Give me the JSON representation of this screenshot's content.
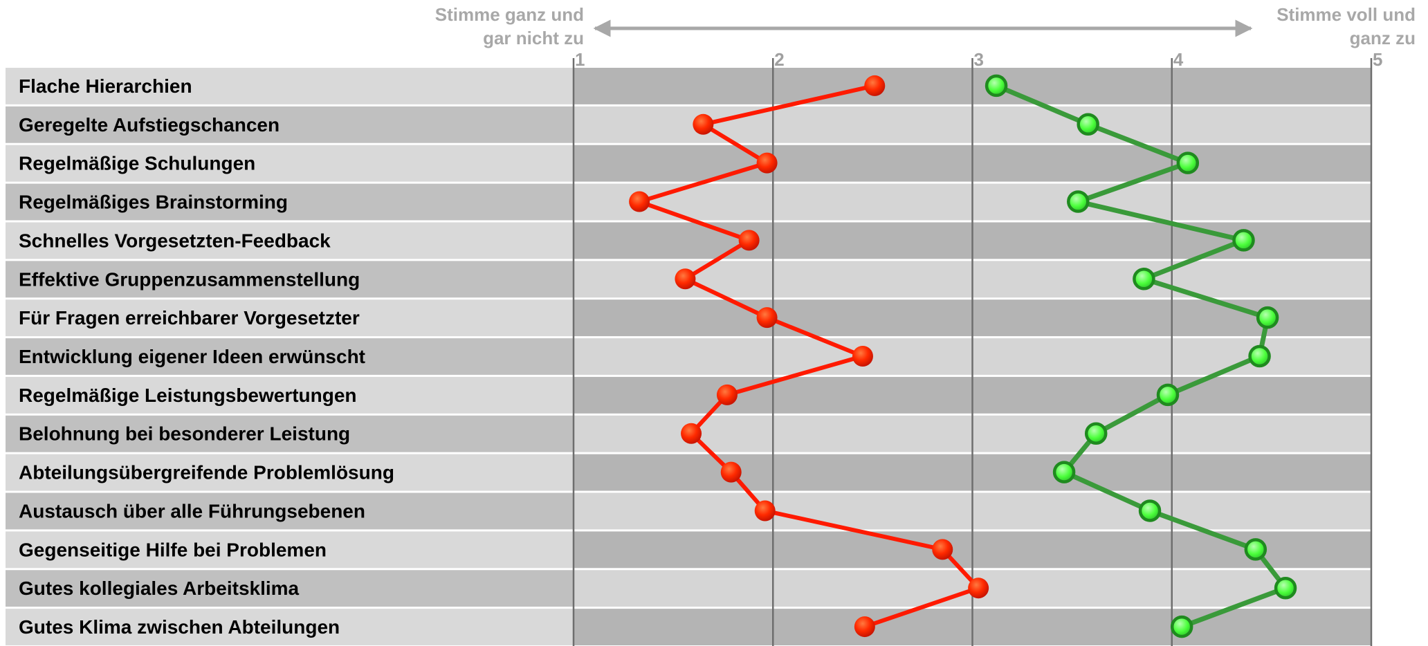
{
  "chart_data": {
    "type": "line",
    "xlim": [
      1,
      5
    ],
    "x_ticks": [
      "1",
      "2",
      "3",
      "4",
      "5"
    ],
    "left_scale_label": [
      "Stimme  ganz und",
      "gar nicht zu"
    ],
    "right_scale_label": [
      "Stimme  voll und",
      "ganz zu"
    ],
    "categories": [
      "Flache Hierarchien",
      "Geregelte Aufstiegschancen",
      "Regelmäßige Schulungen",
      "Regelmäßiges Brainstorming",
      "Schnelles Vorgesetzten-Feedback",
      "Effektive Gruppenzusammenstellung",
      "Für Fragen erreichbarer Vorgesetzter",
      "Entwicklung eigener Ideen erwünscht",
      "Regelmäßige Leistungsbewertungen",
      "Belohnung bei besonderer Leistung",
      "Abteilungsübergreifende Problemlösung",
      "Austausch über alle Führungsebenen",
      "Gegenseitige Hilfe bei Problemen",
      "Gutes kollegiales Arbeitsklima",
      "Gutes Klima zwischen Abteilungen"
    ],
    "series": [
      {
        "color": "#ff1a00",
        "values": [
          2.51,
          1.65,
          1.97,
          1.33,
          1.88,
          1.56,
          1.97,
          2.45,
          1.77,
          1.59,
          1.79,
          1.96,
          2.85,
          3.03,
          2.46
        ]
      },
      {
        "color": "#3a9a3a",
        "values": [
          3.12,
          3.58,
          4.08,
          3.53,
          4.36,
          3.86,
          4.48,
          4.44,
          3.98,
          3.62,
          3.46,
          3.89,
          4.42,
          4.57,
          4.05
        ]
      }
    ],
    "grid": true
  }
}
